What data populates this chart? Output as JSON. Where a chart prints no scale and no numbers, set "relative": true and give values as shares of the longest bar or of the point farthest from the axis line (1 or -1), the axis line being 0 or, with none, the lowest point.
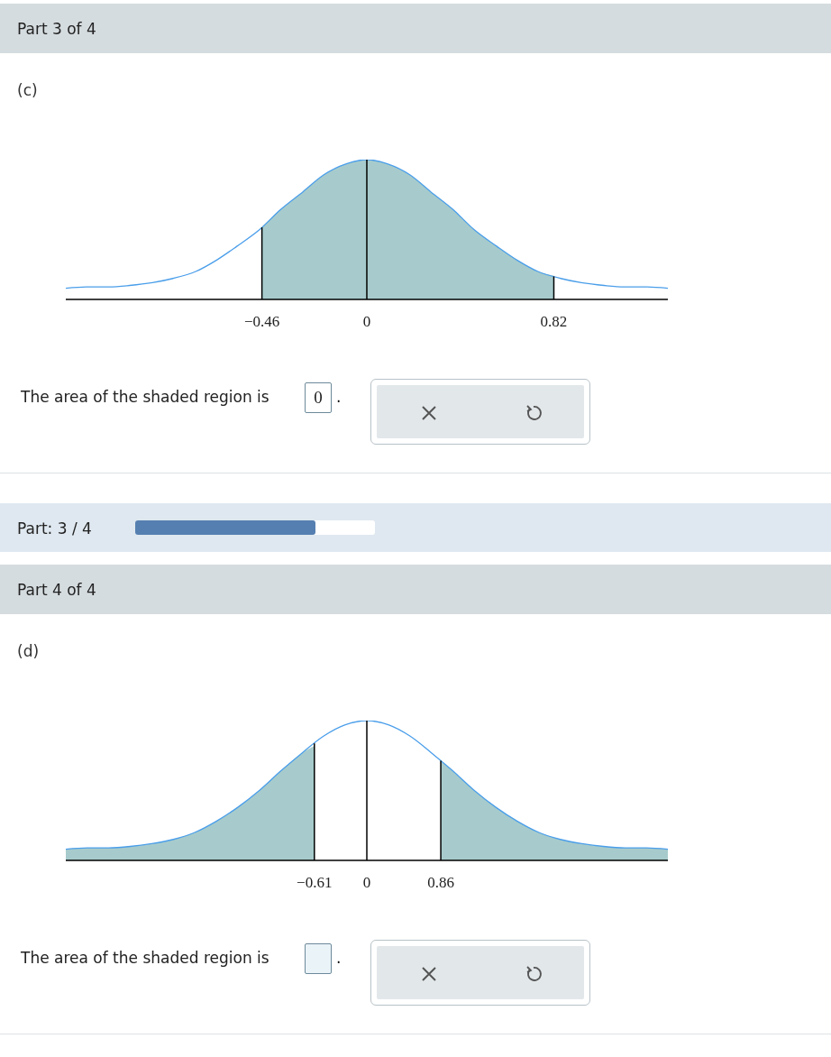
{
  "chart_data": [
    {
      "type": "line",
      "title": "Part 3 of 4",
      "subtitle": "(c)",
      "relative": true,
      "annotations": [
        "The area of the shaded region is",
        ".",
        "0",
        "Part: 3 / 4"
      ],
      "xlim": [
        -1.32,
        1.32
      ],
      "xticks": [
        {
          "value": -0.46,
          "label": "−0.46"
        },
        0,
        0.82
      ],
      "series": [
        {
          "type": "area",
          "color": "#a7cbcc",
          "x": [
            -0.46,
            -0.38,
            -0.28,
            -0.19,
            -0.09,
            0,
            0.09,
            0.19,
            0.28,
            0.38,
            0.47,
            0.57,
            0.66,
            0.75,
            0.82
          ],
          "values": [
            0.52,
            0.64,
            0.77,
            0.89,
            0.97,
            1,
            0.97,
            0.89,
            0.77,
            0.64,
            0.5,
            0.38,
            0.28,
            0.2,
            0.17
          ]
        },
        {
          "color": "#4a9eea",
          "x": [
            -1.32,
            -1.23,
            -1.13,
            -1.04,
            -0.94,
            -0.85,
            -0.75,
            -0.66,
            -0.57,
            -0.47,
            -0.38,
            -0.28,
            -0.19,
            -0.09,
            0,
            0.09,
            0.19,
            0.28,
            0.38,
            0.47,
            0.57,
            0.66,
            0.75,
            0.85,
            0.94,
            1.04,
            1.13,
            1.23,
            1.32
          ],
          "values": [
            0.08,
            0.09,
            0.09,
            0.1,
            0.12,
            0.15,
            0.2,
            0.28,
            0.38,
            0.5,
            0.64,
            0.77,
            0.89,
            0.97,
            1,
            0.97,
            0.89,
            0.77,
            0.64,
            0.5,
            0.38,
            0.28,
            0.2,
            0.15,
            0.12,
            0.1,
            0.09,
            0.09,
            0.08
          ]
        }
      ],
      "ref_lines": [
        {
          "axis": "x",
          "value": -0.46,
          "color": "#000000"
        },
        {
          "axis": "x",
          "value": 0,
          "color": "#000000"
        },
        {
          "axis": "x",
          "value": 0.82,
          "color": "#000000"
        }
      ]
    },
    {
      "type": "line",
      "title": "Part 4 of 4",
      "subtitle": "(d)",
      "relative": true,
      "annotations": [
        "The area of the shaded region is",
        "."
      ],
      "xlim": [
        -3.5,
        3.5
      ],
      "xticks": [
        {
          "value": -0.61,
          "label": "−0.61"
        },
        0,
        0.86
      ],
      "series": [
        {
          "type": "area",
          "color": "#a7cbcc",
          "x": [
            -3.5,
            -3.25,
            -3,
            -2.75,
            -2.5,
            -2.25,
            -2,
            -1.75,
            -1.5,
            -1.25,
            -1,
            -0.75,
            -0.61
          ],
          "values": [
            0.08,
            0.09,
            0.09,
            0.1,
            0.12,
            0.15,
            0.2,
            0.28,
            0.38,
            0.5,
            0.64,
            0.77,
            0.82
          ]
        },
        {
          "type": "area",
          "color": "#a7cbcc",
          "x": [
            0.86,
            1,
            1.25,
            1.5,
            1.75,
            2,
            2.25,
            2.5,
            2.75,
            3,
            3.25,
            3.5
          ],
          "values": [
            0.71,
            0.64,
            0.5,
            0.38,
            0.28,
            0.2,
            0.15,
            0.12,
            0.1,
            0.09,
            0.09,
            0.08
          ]
        },
        {
          "color": "#4a9eea",
          "x": [
            -3.5,
            -3.25,
            -3,
            -2.75,
            -2.5,
            -2.25,
            -2,
            -1.75,
            -1.5,
            -1.25,
            -1,
            -0.75,
            -0.5,
            -0.25,
            0,
            0.25,
            0.5,
            0.75,
            1,
            1.25,
            1.5,
            1.75,
            2,
            2.25,
            2.5,
            2.75,
            3,
            3.25,
            3.5
          ],
          "values": [
            0.08,
            0.09,
            0.09,
            0.1,
            0.12,
            0.15,
            0.2,
            0.28,
            0.38,
            0.5,
            0.64,
            0.77,
            0.89,
            0.97,
            1,
            0.97,
            0.89,
            0.77,
            0.64,
            0.5,
            0.38,
            0.28,
            0.2,
            0.15,
            0.12,
            0.1,
            0.09,
            0.09,
            0.08
          ]
        }
      ],
      "ref_lines": [
        {
          "axis": "x",
          "value": -0.61,
          "color": "#000000"
        },
        {
          "axis": "x",
          "value": 0,
          "color": "#000000"
        },
        {
          "axis": "x",
          "value": 0.86,
          "color": "#000000"
        }
      ]
    }
  ]
}
